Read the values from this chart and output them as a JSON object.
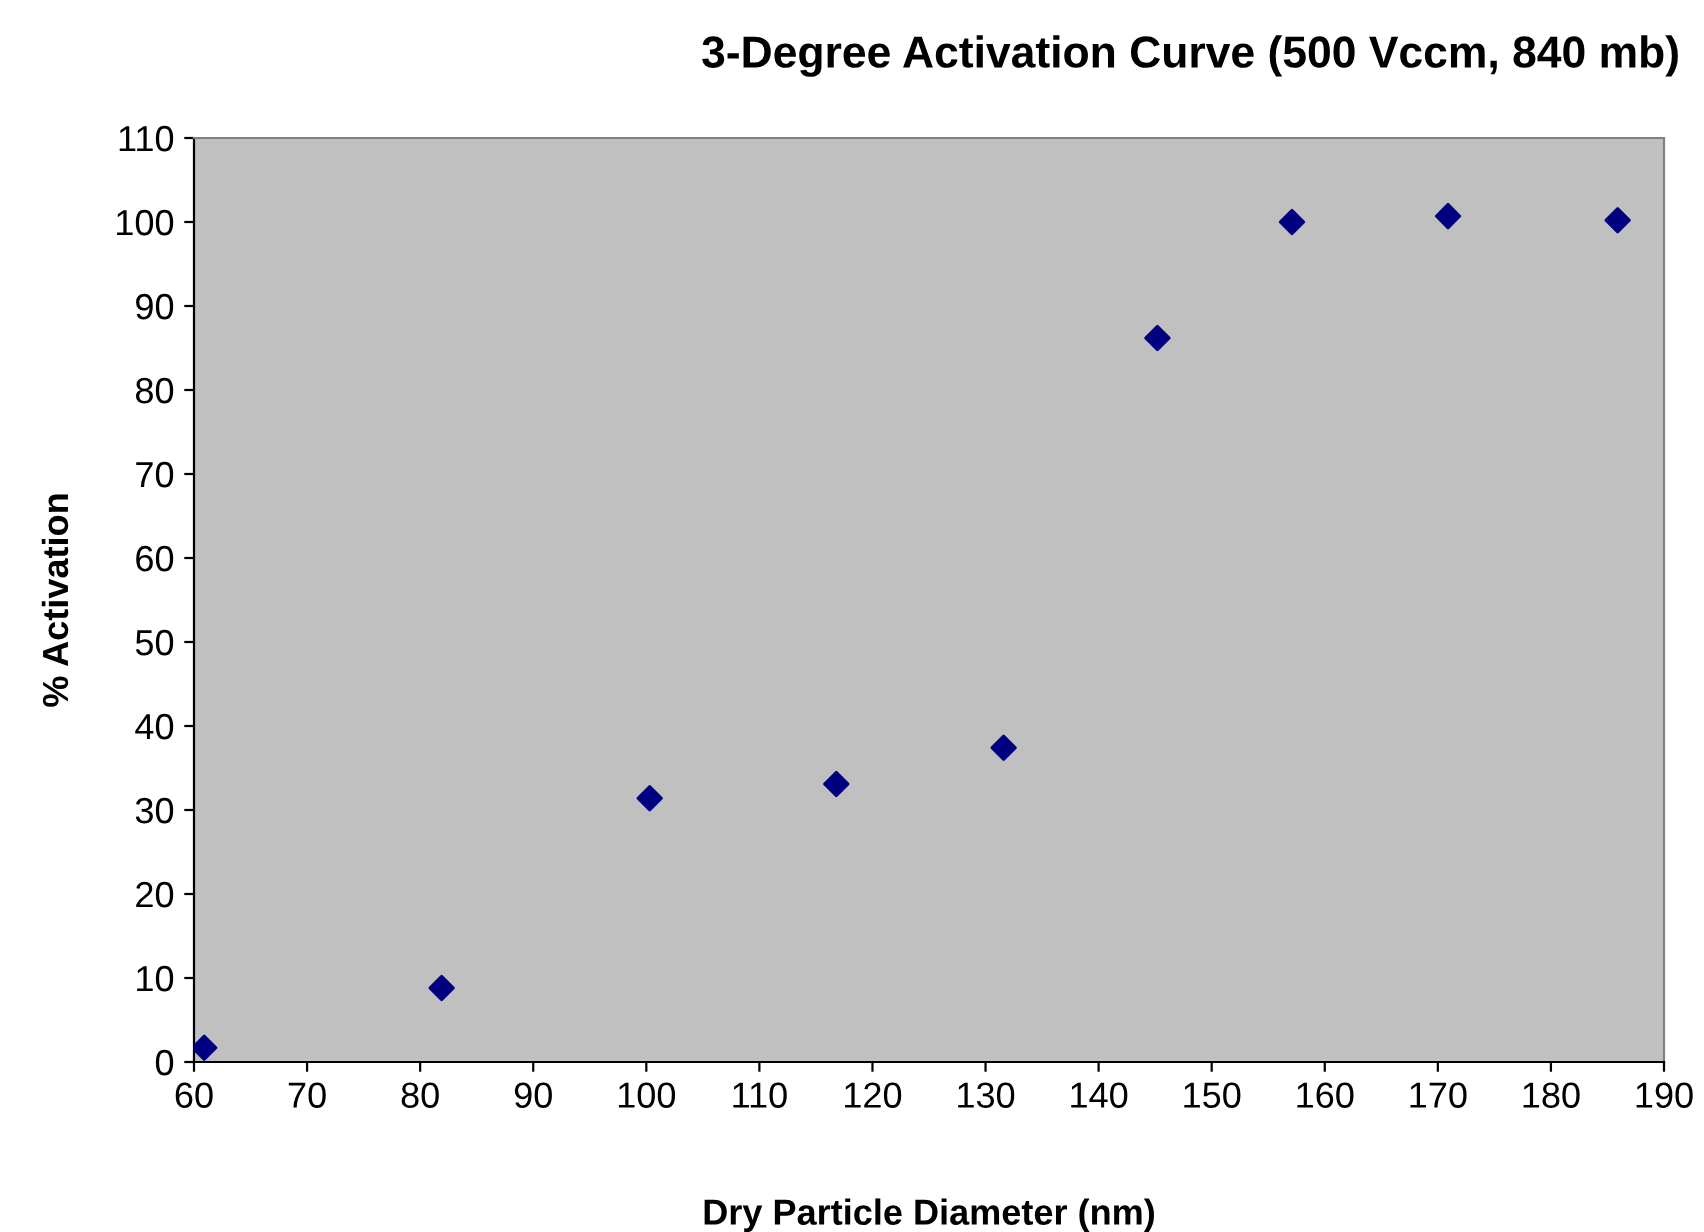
{
  "chart_data": {
    "type": "scatter",
    "title": "3-Degree Activation Curve (500 Vccm, 840 mb)",
    "xlabel": "Dry Particle Diameter (nm)",
    "ylabel": "% Activation",
    "x": [
      60.9,
      81.9,
      100.3,
      116.8,
      131.6,
      145.2,
      157.1,
      170.9,
      185.9
    ],
    "series": [
      {
        "color": "#000080",
        "values": [
          1.7,
          8.8,
          31.4,
          33.1,
          37.4,
          86.2,
          100,
          100.7,
          100.2
        ]
      }
    ],
    "xlim": [
      60,
      190
    ],
    "xticks": [
      60,
      70,
      80,
      90,
      100,
      110,
      120,
      130,
      140,
      150,
      160,
      170,
      180,
      190
    ],
    "ylim": [
      0,
      110
    ],
    "yticks": [
      0,
      10,
      20,
      30,
      40,
      50,
      60,
      70,
      80,
      90,
      100,
      110
    ],
    "marker": "diamond",
    "grid": false,
    "legend": false
  }
}
